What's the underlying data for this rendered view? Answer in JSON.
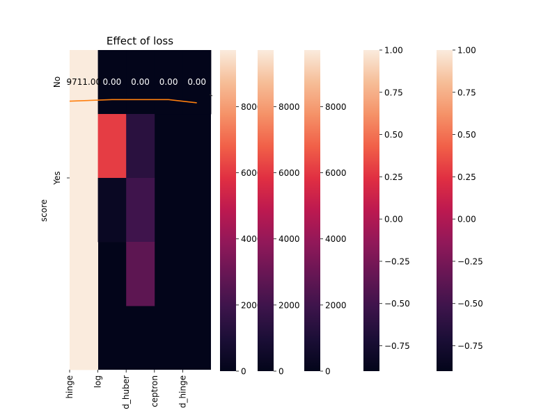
{
  "chart_data": {
    "type": "heatmap",
    "title": "Effect of loss",
    "ylabel": "score",
    "x_tick_labels": [
      "hinge",
      "log",
      "d_huber",
      "ceptron",
      "d_hinge"
    ],
    "y_tick_labels": [
      "No",
      "Yes"
    ],
    "cell_annotations": [
      "9711.00",
      "0.00",
      "0.00",
      "0.00",
      "0.00"
    ],
    "colormap": "rocket",
    "heatmap_columns": [
      {
        "segments": [
          {
            "from": 0,
            "to": 1,
            "value": 9711
          }
        ]
      },
      {
        "segments": [
          {
            "from": 0,
            "to": 0.2,
            "value": 0
          },
          {
            "from": 0.2,
            "to": 0.4,
            "value": 6100
          },
          {
            "from": 0.4,
            "to": 0.6,
            "value": 300
          }
        ]
      },
      {
        "segments": [
          {
            "from": 0,
            "to": 0.2,
            "value": 0
          },
          {
            "from": 0.2,
            "to": 0.4,
            "value": 1400
          },
          {
            "from": 0.4,
            "to": 0.6,
            "value": 2000
          },
          {
            "from": 0.6,
            "to": 0.8,
            "value": 2700
          }
        ]
      },
      {
        "segments": [
          {
            "from": 0,
            "to": 0.2,
            "value": 0
          }
        ]
      },
      {
        "segments": [
          {
            "from": 0,
            "to": 0.2,
            "value": 0
          }
        ]
      }
    ],
    "line": {
      "color": "#ff7f0e",
      "values": [
        0.16,
        0.155,
        0.155,
        0.155,
        0.165
      ]
    },
    "colorbars": [
      {
        "vmin": 0,
        "vmax": 9711,
        "ticks": [
          0,
          2000,
          4000,
          6000,
          8000
        ],
        "tick_labels": [
          "0",
          "2000",
          "4000",
          "6000",
          "8000"
        ]
      },
      {
        "vmin": 0,
        "vmax": 9711,
        "ticks": [
          0,
          2000,
          4000,
          6000,
          8000
        ],
        "tick_labels": [
          "0",
          "2000",
          "4000",
          "6000",
          "8000"
        ]
      },
      {
        "vmin": 0,
        "vmax": 9711,
        "ticks": [
          0,
          2000,
          4000,
          6000,
          8000
        ],
        "tick_labels": [
          "0",
          "2000",
          "4000",
          "6000",
          "8000"
        ]
      },
      {
        "vmin": -0.9,
        "vmax": 1.0,
        "ticks": [
          1.0,
          0.75,
          0.5,
          0.25,
          0.0,
          -0.25,
          -0.5,
          -0.75
        ],
        "tick_labels": [
          "1.00",
          "0.75",
          "0.50",
          "0.25",
          "0.00",
          "−0.25",
          "−0.50",
          "−0.75"
        ]
      },
      {
        "vmin": -0.9,
        "vmax": 1.0,
        "ticks": [
          1.0,
          0.75,
          0.5,
          0.25,
          0.0,
          -0.25,
          -0.5,
          -0.75
        ],
        "tick_labels": [
          "1.00",
          "0.75",
          "0.50",
          "0.25",
          "0.00",
          "−0.25",
          "−0.50",
          "−0.75"
        ]
      }
    ]
  }
}
